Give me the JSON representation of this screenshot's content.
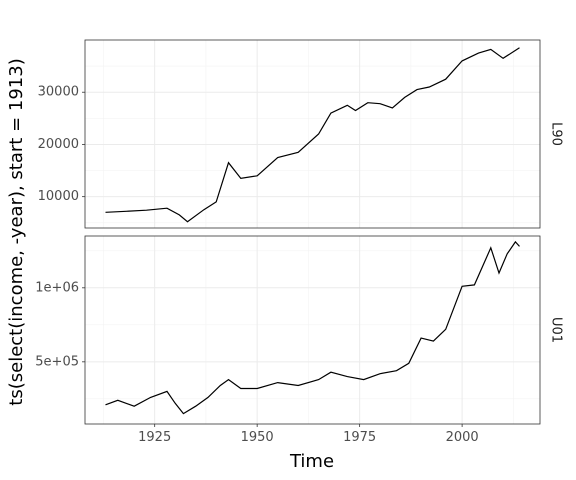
{
  "chart_data": {
    "type": "line",
    "xlabel": "Time",
    "ylabel": "ts(select(income, -year), start = 1913)",
    "x_start": 1913,
    "x_end": 2014,
    "xlim": [
      1908,
      2019
    ],
    "x_ticks": [
      1925,
      1950,
      1975,
      2000
    ],
    "x_tick_labels": [
      "1925",
      "1950",
      "1975",
      "2000"
    ],
    "grid": true,
    "panels": [
      {
        "strip_label": "L90",
        "ylim": [
          4000,
          40000
        ],
        "y_ticks": [
          10000,
          20000,
          30000
        ],
        "y_tick_labels": [
          "10000",
          "20000",
          "30000"
        ],
        "series": [
          {
            "x": [
              1913,
              1918,
              1923,
              1928,
              1931,
              1933,
              1937,
              1940,
              1943,
              1946,
              1950,
              1955,
              1960,
              1965,
              1968,
              1972,
              1974,
              1977,
              1980,
              1983,
              1986,
              1989,
              1992,
              1996,
              2000,
              2004,
              2007,
              2010,
              2014
            ],
            "values": [
              7000,
              7200,
              7400,
              7800,
              6500,
              5200,
              7500,
              9000,
              16500,
              13500,
              14000,
              17500,
              18500,
              22000,
              26000,
              27500,
              26500,
              28000,
              27800,
              27000,
              29000,
              30500,
              31000,
              32500,
              36000,
              37500,
              38200,
              36500,
              38500
            ]
          }
        ]
      },
      {
        "strip_label": "U01",
        "ylim": [
          80000,
          1350000
        ],
        "y_ticks": [
          500000,
          1000000
        ],
        "y_tick_labels": [
          "5e+05",
          "1e+06"
        ],
        "series": [
          {
            "x": [
              1913,
              1916,
              1920,
              1924,
              1928,
              1930,
              1932,
              1935,
              1938,
              1941,
              1943,
              1946,
              1950,
              1955,
              1960,
              1965,
              1968,
              1972,
              1976,
              1980,
              1984,
              1987,
              1990,
              1993,
              1996,
              2000,
              2003,
              2007,
              2009,
              2011,
              2013,
              2014
            ],
            "values": [
              210000,
              240000,
              200000,
              260000,
              300000,
              220000,
              150000,
              200000,
              260000,
              340000,
              380000,
              320000,
              320000,
              360000,
              340000,
              380000,
              430000,
              400000,
              380000,
              420000,
              440000,
              490000,
              660000,
              640000,
              720000,
              1010000,
              1020000,
              1270000,
              1100000,
              1230000,
              1310000,
              1280000
            ]
          }
        ]
      }
    ]
  }
}
